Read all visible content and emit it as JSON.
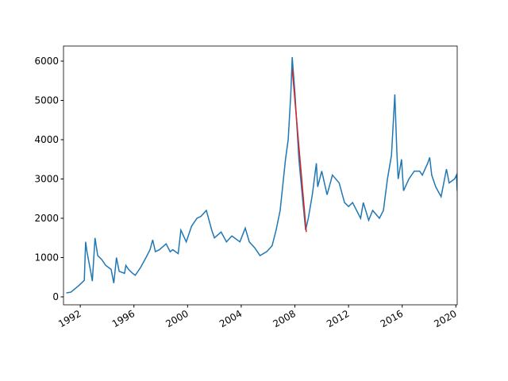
{
  "chart_data": {
    "type": "line",
    "x": [
      1990.96,
      1991.3,
      1991.9,
      1992.3,
      1992.4,
      1992.5,
      1992.8,
      1992.9,
      1993.1,
      1993.3,
      1993.6,
      1993.9,
      1994.3,
      1994.5,
      1994.7,
      1994.9,
      1995.3,
      1995.4,
      1995.6,
      1995.9,
      1996.1,
      1996.5,
      1996.9,
      1997.2,
      1997.4,
      1997.6,
      1997.9,
      1998.4,
      1998.7,
      1998.9,
      1999.3,
      1999.5,
      1999.9,
      2000.3,
      2000.7,
      2001.0,
      2001.4,
      2001.8,
      2002.0,
      2002.5,
      2002.9,
      2003.3,
      2003.9,
      2004.3,
      2004.6,
      2005.0,
      2005.4,
      2005.9,
      2006.3,
      2006.6,
      2006.9,
      2007.3,
      2007.5,
      2007.7,
      2007.8,
      2008.0,
      2008.3,
      2008.6,
      2008.8,
      2009.0,
      2009.3,
      2009.6,
      2009.7,
      2010.0,
      2010.4,
      2010.8,
      2011.3,
      2011.7,
      2012.0,
      2012.3,
      2012.9,
      2013.1,
      2013.5,
      2013.8,
      2014.3,
      2014.6,
      2014.9,
      2015.2,
      2015.45,
      2015.6,
      2015.7,
      2015.95,
      2016.1,
      2016.5,
      2016.9,
      2017.3,
      2017.5,
      2017.9,
      2018.05,
      2018.2,
      2018.5,
      2018.9,
      2019.3,
      2019.5,
      2019.9,
      2020.05,
      2020.1
    ],
    "series": [
      {
        "color": "#1f77b4",
        "values": [
          100,
          120,
          290,
          420,
          1400,
          1150,
          600,
          400,
          1500,
          1050,
          950,
          800,
          700,
          350,
          1000,
          650,
          600,
          800,
          700,
          600,
          550,
          750,
          1000,
          1200,
          1450,
          1150,
          1200,
          1350,
          1150,
          1200,
          1100,
          1700,
          1400,
          1800,
          2000,
          2050,
          2200,
          1700,
          1500,
          1650,
          1400,
          1550,
          1400,
          1750,
          1400,
          1250,
          1050,
          1150,
          1300,
          1700,
          2200,
          3500,
          4000,
          5200,
          6100,
          5200,
          3500,
          2400,
          1700,
          2000,
          2600,
          3400,
          2800,
          3200,
          2600,
          3100,
          2900,
          2400,
          2300,
          2400,
          2000,
          2400,
          1950,
          2200,
          2000,
          2200,
          3000,
          3600,
          5150,
          3700,
          3000,
          3500,
          2700,
          3000,
          3200,
          3200,
          3100,
          3400,
          3550,
          3100,
          2800,
          2550,
          3250,
          2900,
          3000,
          3100,
          2700
        ]
      },
      {
        "color": "#d62728",
        "x": [
          2007.8,
          2008.85
        ],
        "values": [
          5800,
          1650
        ]
      }
    ],
    "xlim": [
      1990.75,
      2020.1
    ],
    "xticks": [
      1992,
      1996,
      2000,
      2004,
      2008,
      2012,
      2016,
      2020
    ],
    "ylim": [
      -202,
      6384
    ],
    "yticks": [
      0,
      1000,
      2000,
      3000,
      4000,
      5000,
      6000
    ]
  }
}
